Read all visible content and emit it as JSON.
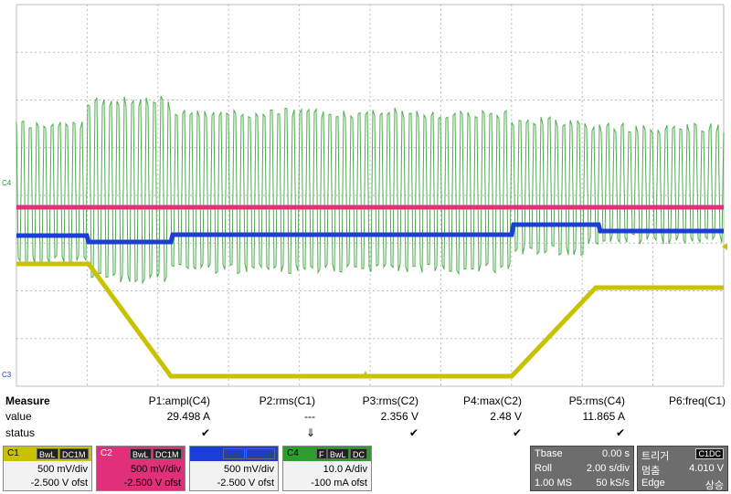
{
  "scope": {
    "channel_markers": {
      "c4": "C4",
      "c3": "C3"
    },
    "colors": {
      "c1": "#c8c200",
      "c2": "#e0307a",
      "c3": "#1b3fd6",
      "c4": "#2e9d2e",
      "grid": "#bdbdbd"
    }
  },
  "measure": {
    "header_label": "Measure",
    "value_label": "value",
    "status_label": "status",
    "params": [
      {
        "name": "P1:ampl(C4)",
        "value": "29.498 A",
        "status": "✔"
      },
      {
        "name": "P2:rms(C1)",
        "value": "---",
        "status": "⇓"
      },
      {
        "name": "P3:rms(C2)",
        "value": "2.356 V",
        "status": "✔"
      },
      {
        "name": "P4:max(C2)",
        "value": "2.48 V",
        "status": "✔"
      },
      {
        "name": "P5:rms(C4)",
        "value": "11.865 A",
        "status": "✔"
      },
      {
        "name": "P6:freq(C1)",
        "value": "",
        "status": ""
      }
    ]
  },
  "channels": [
    {
      "num": "C1",
      "tags": [
        "BwL",
        "DC1M"
      ],
      "vdiv": "500 mV/div",
      "offset": "-2.500 V ofst",
      "color": "#c8c200"
    },
    {
      "num": "C2",
      "tags": [
        "BwL",
        "DC1M"
      ],
      "vdiv": "500 mV/div",
      "offset": "-2.500 V ofst",
      "color": "#e0307a"
    },
    {
      "num": "C3",
      "tags": [
        "BwL",
        "DC1M"
      ],
      "vdiv": "500 mV/div",
      "offset": "-2.500 V ofst",
      "color": "#1b3fd6"
    },
    {
      "num": "C4",
      "tags": [
        "F",
        "BwL",
        "DC"
      ],
      "vdiv": "10.0 A/div",
      "offset": "-100 mA ofst",
      "color": "#2e9d2e"
    }
  ],
  "timebase": {
    "label": "Tbase",
    "offset": "0.00 s",
    "mode": "Roll",
    "tdiv": "2.00 s/div",
    "memory": "1.00 MS",
    "rate": "50 kS/s"
  },
  "trigger": {
    "label": "트리거",
    "source_tag": "C1DC",
    "state": "멈춤",
    "level": "4.010 V",
    "type": "Edge",
    "slope": "상승"
  }
}
